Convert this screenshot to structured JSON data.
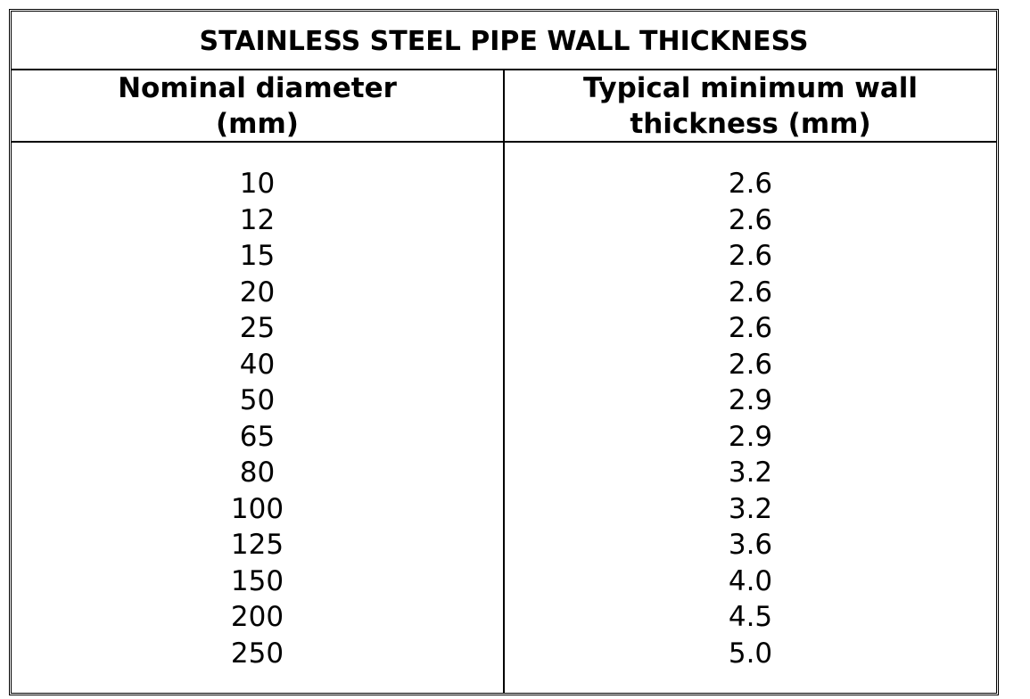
{
  "title": "STAINLESS STEEL PIPE WALL THICKNESS",
  "table": {
    "headers": [
      [
        "Nominal diameter",
        "(mm)"
      ],
      [
        "Typical minimum wall",
        "thickness (mm)"
      ]
    ],
    "rows": [
      [
        "10",
        "2.6"
      ],
      [
        "12",
        "2.6"
      ],
      [
        "15",
        "2.6"
      ],
      [
        "20",
        "2.6"
      ],
      [
        "25",
        "2.6"
      ],
      [
        "40",
        "2.6"
      ],
      [
        "50",
        "2.9"
      ],
      [
        "65",
        "2.9"
      ],
      [
        "80",
        "3.2"
      ],
      [
        "100",
        "3.2"
      ],
      [
        "125",
        "3.6"
      ],
      [
        "150",
        "4.0"
      ],
      [
        "200",
        "4.5"
      ],
      [
        "250",
        "5.0"
      ]
    ]
  }
}
